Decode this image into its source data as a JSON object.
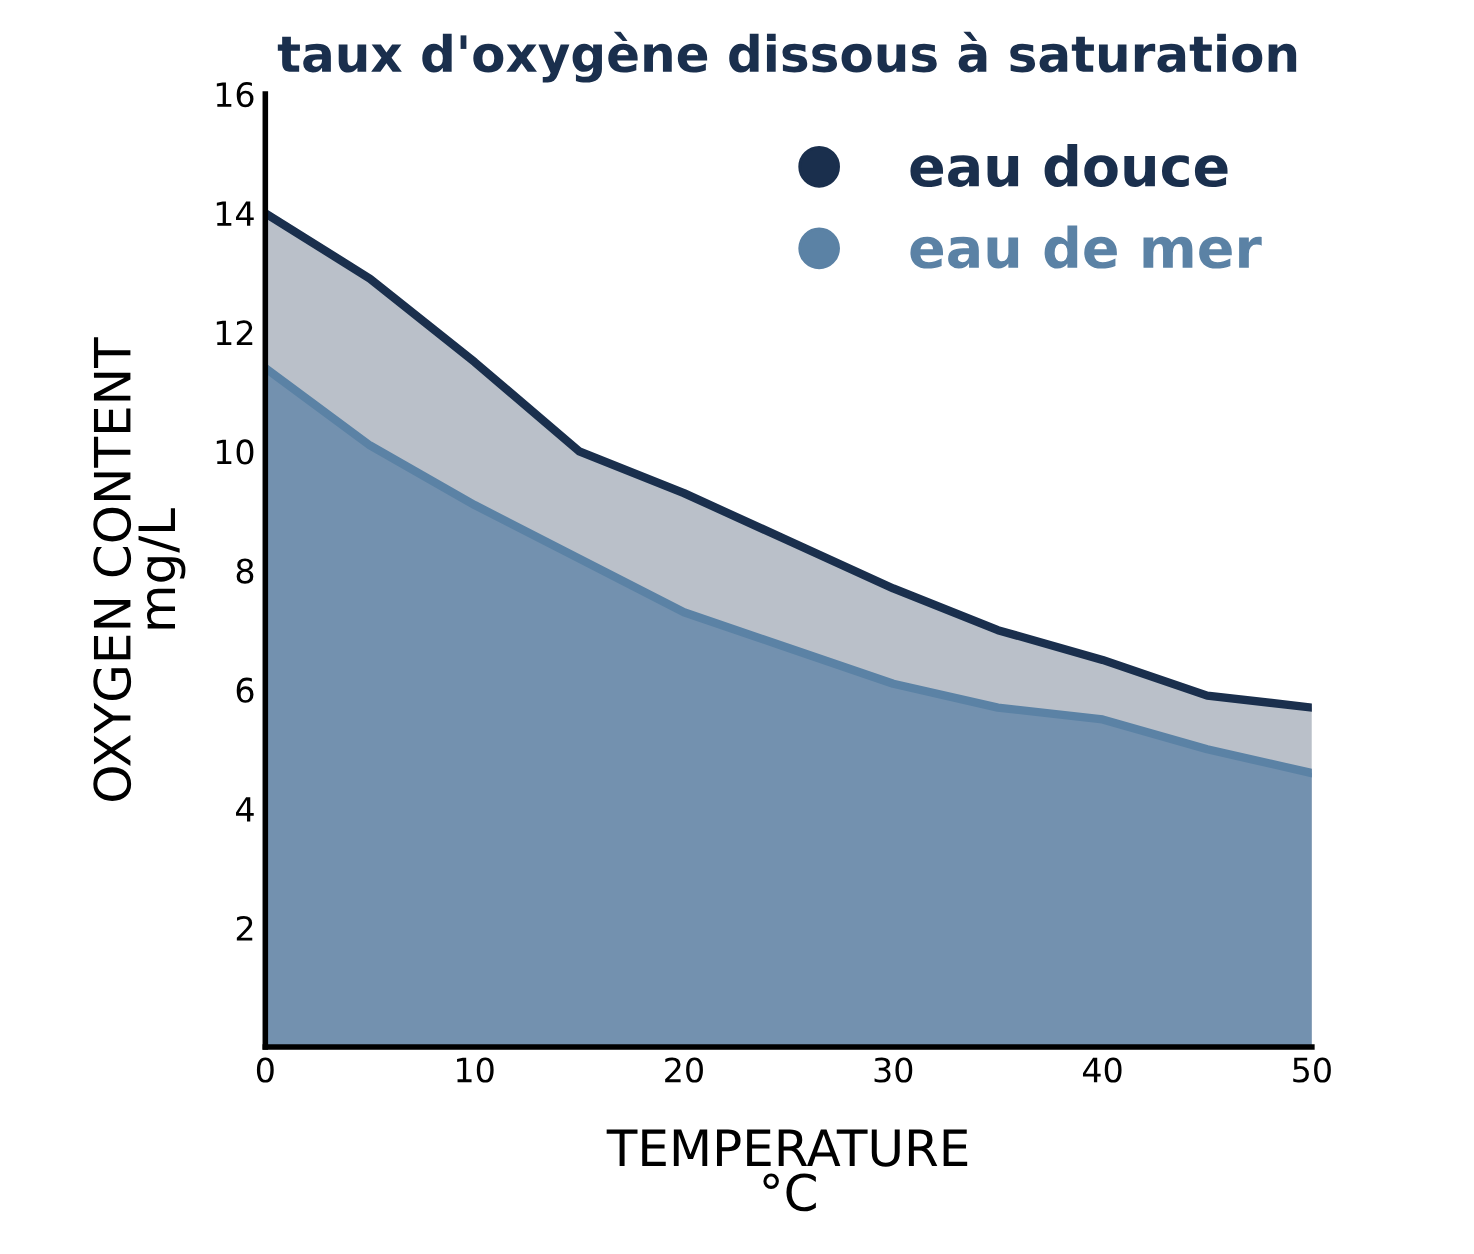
{
  "chart_data": {
    "type": "area",
    "title": "taux d'oxygène dissous à saturation",
    "xlabel": "TEMPERATURE\n°C",
    "ylabel": "OXYGEN CONTENT\nmg/L",
    "x": [
      0,
      5,
      10,
      15,
      20,
      25,
      30,
      35,
      40,
      45,
      50
    ],
    "series": [
      {
        "name": "eau douce",
        "color": "#1a2f4d",
        "values": [
          14.0,
          12.9,
          11.5,
          10.0,
          9.3,
          8.5,
          7.7,
          7.0,
          6.5,
          5.9,
          5.7
        ]
      },
      {
        "name": "eau de mer",
        "color": "#5b82a5",
        "values": [
          11.4,
          10.1,
          9.1,
          8.2,
          7.3,
          6.7,
          6.1,
          5.7,
          5.5,
          5.0,
          4.6
        ]
      }
    ],
    "xlim": [
      0,
      50
    ],
    "xticks": [
      0,
      10,
      20,
      30,
      40,
      50
    ],
    "ylim": [
      0,
      16
    ],
    "yticks": [
      2,
      4,
      6,
      8,
      10,
      12,
      14,
      16
    ],
    "grid": false,
    "legend": "top right",
    "marker": "none",
    "line_style": "solid"
  }
}
